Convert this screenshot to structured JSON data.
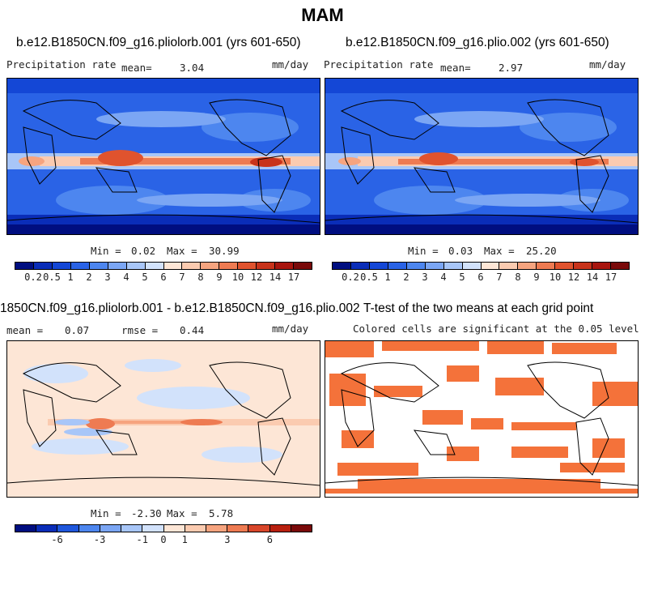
{
  "figure": {
    "title": "MAM"
  },
  "panel_a": {
    "title": "b.e12.B1850CN.f09_g16.pliolorb.001 (yrs 601-650)",
    "variable": "Precipitation rate",
    "mean_label": "mean=",
    "mean_value": "3.04",
    "units": "mm/day",
    "min_label": "Min =",
    "min_value": "0.02",
    "max_label": "Max =",
    "max_value": "30.99"
  },
  "panel_b": {
    "title": "b.e12.B1850CN.f09_g16.plio.002 (yrs 601-650)",
    "variable": "Precipitation rate",
    "mean_label": "mean=",
    "mean_value": "2.97",
    "units": "mm/day",
    "min_label": "Min =",
    "min_value": "0.03",
    "max_label": "Max =",
    "max_value": "25.20"
  },
  "panel_c": {
    "title": "1850CN.f09_g16.pliolorb.001 - b.e12.B1850CN.f09_g16.plio.002",
    "mean_label": "mean =",
    "mean_value": "0.07",
    "rmse_label": "rmse =",
    "rmse_value": "0.44",
    "units": "mm/day",
    "min_label": "Min =",
    "min_value": "-2.30",
    "max_label": "Max =",
    "max_value": "5.78"
  },
  "panel_d": {
    "title": "T-test of the two means at each grid point",
    "subtitle": "Colored cells are significant at the 0.05 level",
    "significant_color": "#f4723a"
  },
  "colorbar_precip": {
    "colors": [
      "#000e80",
      "#0a2db8",
      "#1447d6",
      "#2a63e6",
      "#4d86ef",
      "#7ba6f4",
      "#a8c6f8",
      "#d2e2fb",
      "#fde6d6",
      "#fbcbb0",
      "#f6a47f",
      "#ee7b52",
      "#e0532e",
      "#c8331b",
      "#a8150e",
      "#7a0a0a"
    ],
    "labels": [
      "0.2",
      "0.5",
      "1",
      "2",
      "3",
      "4",
      "5",
      "6",
      "7",
      "8",
      "9",
      "10",
      "12",
      "14",
      "17"
    ]
  },
  "colorbar_diff": {
    "colors": [
      "#000e80",
      "#0a2db8",
      "#1f57dc",
      "#4d86ef",
      "#7ba6f4",
      "#a8c6f8",
      "#d2e2fb",
      "#fde6d6",
      "#fbcbb0",
      "#f6a47f",
      "#ee7b52",
      "#d8462a",
      "#b8200f",
      "#7a0a0a"
    ],
    "labels": [
      "-6",
      "-3",
      "-1",
      "0",
      "1",
      "3",
      "6"
    ]
  }
}
